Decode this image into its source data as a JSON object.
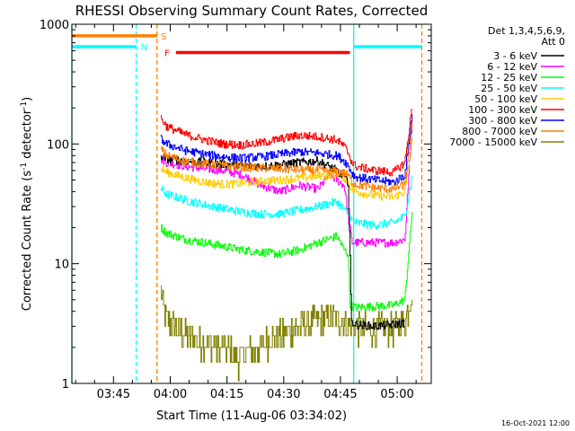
{
  "chart_data": {
    "type": "line",
    "title": "RHESSI Observing Summary Count Rates, Corrected",
    "xlabel": "Start Time (11-Aug-06 03:34:02)",
    "ylabel": "Corrected Count Rate (s",
    "ylabel_sup1": "-1",
    "ylabel_mid": " detector",
    "ylabel_sup2": "-1",
    "ylabel_end": ")",
    "x_ticks": [
      "03:45",
      "04:00",
      "04:15",
      "04:30",
      "04:45",
      "05:00"
    ],
    "y_ticks": [
      "1",
      "10",
      "100",
      "1000"
    ],
    "y_scale": "log",
    "ylim": [
      1,
      1000
    ],
    "xlim_minutes": [
      0,
      95
    ],
    "legend_header": [
      "Det 1,3,4,5,6,9,",
      "Att 0"
    ],
    "legend_placement": "right",
    "footer_date": "16-Oct-2021 12:00",
    "flag_labels": {
      "saa": "S",
      "flare": "F",
      "night": "N"
    },
    "flags": [
      {
        "name": "S",
        "color": "#ff7f00",
        "level": 800,
        "x_start": 0,
        "x_end": 22.5
      },
      {
        "name": "F",
        "color": "#ff0000",
        "level": 580,
        "x_start": 27.5,
        "x_end": 73.5
      },
      {
        "name": "N",
        "color": "#00ffff",
        "level": 650,
        "x_start": 0,
        "x_end": 17
      },
      {
        "name": "N",
        "color": "#00ffff",
        "level": 650,
        "x_start": 74.5,
        "x_end": 92.5
      }
    ],
    "vlines": [
      {
        "x": 17,
        "color": "#00ffff",
        "style": "dashed"
      },
      {
        "x": 22.5,
        "color": "#ff7f00",
        "style": "dashed"
      },
      {
        "x": 74.5,
        "color": "#00ffff",
        "style": "solid"
      },
      {
        "x": 92.5,
        "color": "#ff7f00",
        "style": "dashed"
      },
      {
        "x": 0,
        "color": "#00ffff",
        "style": "solid"
      }
    ],
    "series": [
      {
        "name": "3 - 6 keV",
        "color": "#000000",
        "x": [
          23.5,
          25,
          30,
          35,
          40,
          45,
          50,
          55,
          60,
          65,
          70,
          72,
          73,
          73.6,
          73.8,
          75,
          80,
          85,
          88
        ],
        "y": [
          80,
          75,
          72,
          70,
          68,
          66,
          65,
          67,
          70,
          72,
          60,
          52,
          48,
          10,
          3.3,
          3.1,
          3.0,
          3.1,
          3.2
        ]
      },
      {
        "name": "6 - 12 keV",
        "color": "#ff00ff",
        "x": [
          23.5,
          25,
          30,
          35,
          40,
          45,
          50,
          55,
          60,
          65,
          68,
          70,
          72,
          73,
          74,
          75,
          80,
          85,
          88,
          90
        ],
        "y": [
          75,
          70,
          65,
          62,
          60,
          55,
          45,
          40,
          45,
          42,
          55,
          50,
          45,
          25,
          15,
          15,
          15,
          15,
          16,
          180
        ]
      },
      {
        "name": "12 - 25 keV",
        "color": "#00ff00",
        "x": [
          23.5,
          25,
          30,
          35,
          40,
          45,
          50,
          55,
          60,
          65,
          70,
          72,
          73,
          73.5,
          75,
          80,
          85,
          88,
          90
        ],
        "y": [
          20,
          18,
          16,
          15,
          14,
          13,
          12.5,
          12,
          13,
          15,
          17,
          13,
          12,
          4.5,
          4.3,
          4.4,
          4.5,
          5,
          30
        ]
      },
      {
        "name": "25 - 50 keV",
        "color": "#00ffff",
        "x": [
          23.5,
          25,
          30,
          35,
          40,
          45,
          50,
          55,
          60,
          65,
          70,
          72,
          73,
          74,
          75,
          80,
          85,
          88,
          90
        ],
        "y": [
          42,
          38,
          34,
          31,
          29,
          27,
          26,
          26,
          28,
          30,
          33,
          28,
          26,
          23,
          22,
          21,
          22,
          25,
          55
        ]
      },
      {
        "name": "50 - 100 keV",
        "color": "#ffcc00",
        "x": [
          23.5,
          25,
          30,
          35,
          40,
          45,
          50,
          55,
          60,
          65,
          70,
          72,
          73,
          74,
          75,
          80,
          85,
          88,
          90
        ],
        "y": [
          62,
          58,
          52,
          48,
          46,
          47,
          49,
          50,
          52,
          54,
          56,
          52,
          48,
          42,
          40,
          37,
          36,
          40,
          110
        ]
      },
      {
        "name": "100 - 300 keV",
        "color": "#ff0000",
        "x": [
          23.5,
          25,
          30,
          35,
          40,
          45,
          50,
          55,
          60,
          65,
          70,
          72,
          73,
          74,
          75,
          80,
          85,
          88,
          90
        ],
        "y": [
          165,
          140,
          120,
          108,
          100,
          98,
          102,
          110,
          118,
          115,
          108,
          95,
          85,
          70,
          65,
          60,
          58,
          70,
          220
        ]
      },
      {
        "name": "300 - 800 keV",
        "color": "#0000ff",
        "x": [
          23.5,
          25,
          30,
          35,
          40,
          45,
          50,
          55,
          60,
          65,
          70,
          72,
          73,
          74,
          75,
          80,
          85,
          88,
          90
        ],
        "y": [
          110,
          100,
          88,
          82,
          78,
          76,
          78,
          82,
          86,
          84,
          80,
          72,
          66,
          57,
          53,
          50,
          48,
          55,
          190
        ]
      },
      {
        "name": "800 - 7000 keV",
        "color": "#ff7f00",
        "x": [
          23.5,
          25,
          30,
          35,
          40,
          45,
          50,
          55,
          60,
          65,
          70,
          72,
          73,
          74,
          75,
          80,
          85,
          88,
          90
        ],
        "y": [
          90,
          80,
          72,
          68,
          66,
          64,
          63,
          62,
          61,
          60,
          59,
          57,
          55,
          48,
          46,
          43,
          42,
          46,
          150
        ]
      },
      {
        "name": "7000 - 15000 keV",
        "color": "#808000",
        "x": [
          23.5,
          24,
          25,
          27,
          30,
          33,
          36,
          40,
          44,
          48,
          52,
          56,
          60,
          64,
          68,
          72,
          73.5,
          75,
          80,
          85,
          88,
          90
        ],
        "y": [
          6,
          4.5,
          3.5,
          3,
          2.6,
          2.4,
          2.2,
          2,
          1.6,
          1.9,
          2.3,
          2.6,
          3,
          3.3,
          3.5,
          3.3,
          3,
          2.9,
          2.8,
          2.9,
          3.2,
          6
        ]
      }
    ]
  }
}
